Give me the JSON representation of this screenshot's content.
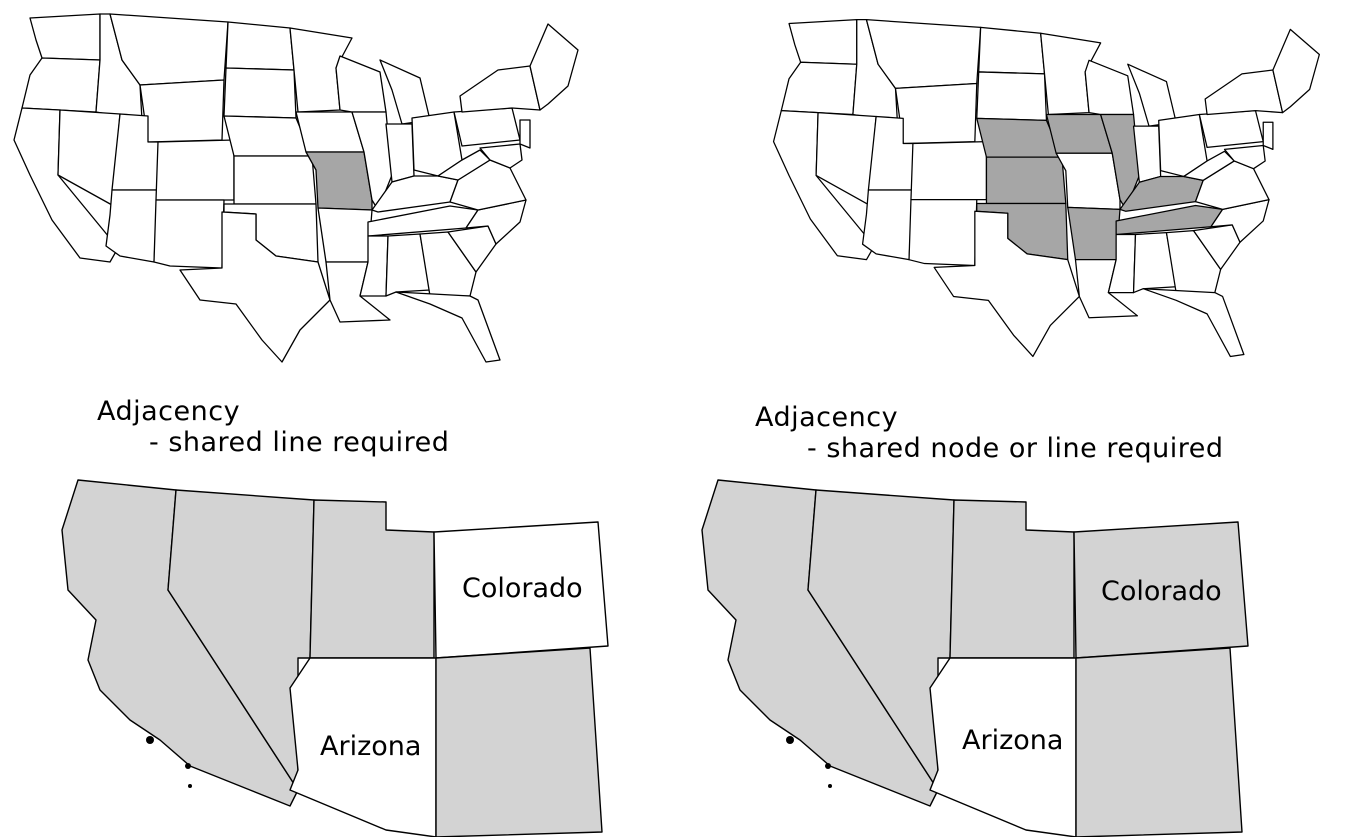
{
  "colors": {
    "background": "#ffffff",
    "stroke": "#000000",
    "highlight_us": "#a6a6a6",
    "highlight_region": "#d3d3d3",
    "unselected": "#ffffff"
  },
  "panels": [
    {
      "id": "left",
      "caption_title": "Adjacency",
      "caption_sub": "- shared line required",
      "us_highlighted": [
        "Missouri"
      ],
      "region_labels": {
        "colorado": "Colorado",
        "arizona": "Arizona"
      },
      "region_fill": {
        "california": "highlight",
        "nevada": "highlight",
        "utah": "highlight",
        "colorado": "white",
        "arizona": "white",
        "new_mexico": "highlight"
      }
    },
    {
      "id": "right",
      "caption_title": "Adjacency",
      "caption_sub": "- shared node or line required",
      "us_highlighted": [
        "Nebraska",
        "Iowa",
        "Kansas",
        "Oklahoma",
        "Arkansas",
        "Illinois",
        "Kentucky",
        "Tennessee"
      ],
      "region_labels": {
        "colorado": "Colorado",
        "arizona": "Arizona"
      },
      "region_fill": {
        "california": "highlight",
        "nevada": "highlight",
        "utah": "highlight",
        "colorado": "highlight",
        "arizona": "white",
        "new_mexico": "highlight"
      }
    }
  ]
}
